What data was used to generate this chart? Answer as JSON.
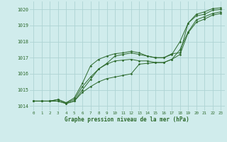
{
  "title": "Graphe pression niveau de la mer (hPa)",
  "background_color": "#d0ecec",
  "grid_color": "#aed4d4",
  "line_color": "#2d6a2d",
  "xlim": [
    -0.5,
    23.5
  ],
  "ylim": [
    1013.7,
    1020.5
  ],
  "xticks": [
    0,
    1,
    2,
    3,
    4,
    5,
    6,
    7,
    8,
    9,
    10,
    11,
    12,
    13,
    14,
    15,
    16,
    17,
    18,
    19,
    20,
    21,
    22,
    23
  ],
  "yticks": [
    1014,
    1015,
    1016,
    1017,
    1018,
    1019,
    1020
  ],
  "series": [
    [
      1014.3,
      1014.3,
      1014.3,
      1014.4,
      1014.2,
      1014.4,
      1015.2,
      1015.8,
      1016.3,
      1016.65,
      1017.1,
      1017.2,
      1017.3,
      1017.2,
      1017.1,
      1017.0,
      1017.0,
      1017.2,
      1018.0,
      1019.15,
      1019.6,
      1019.7,
      1019.95,
      1020.0
    ],
    [
      1014.3,
      1014.3,
      1014.3,
      1014.4,
      1014.2,
      1014.5,
      1015.4,
      1016.5,
      1016.9,
      1017.1,
      1017.25,
      1017.3,
      1017.4,
      1017.3,
      1017.1,
      1017.0,
      1017.0,
      1017.25,
      1017.3,
      1019.15,
      1019.7,
      1019.85,
      1020.05,
      1020.1
    ],
    [
      1014.3,
      1014.3,
      1014.3,
      1014.3,
      1014.15,
      1014.3,
      1015.0,
      1015.65,
      1016.3,
      1016.6,
      1016.8,
      1016.85,
      1016.9,
      1016.8,
      1016.8,
      1016.7,
      1016.7,
      1016.9,
      1017.5,
      1018.6,
      1019.35,
      1019.55,
      1019.75,
      1019.85
    ],
    [
      1014.3,
      1014.3,
      1014.3,
      1014.3,
      1014.15,
      1014.3,
      1014.85,
      1015.2,
      1015.5,
      1015.7,
      1015.8,
      1015.9,
      1016.0,
      1016.6,
      1016.65,
      1016.7,
      1016.7,
      1016.9,
      1017.2,
      1018.55,
      1019.2,
      1019.4,
      1019.65,
      1019.75
    ]
  ]
}
